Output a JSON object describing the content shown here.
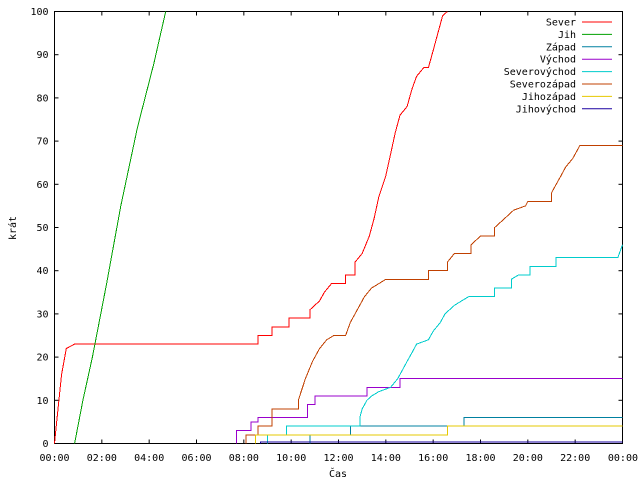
{
  "chart_data": {
    "type": "line",
    "title": "",
    "xlabel": "Čas",
    "ylabel": "krát",
    "xlim": [
      0,
      24
    ],
    "ylim": [
      0,
      100
    ],
    "x_ticks": [
      "00:00",
      "02:00",
      "04:00",
      "06:00",
      "08:00",
      "10:00",
      "12:00",
      "14:00",
      "16:00",
      "18:00",
      "20:00",
      "22:00",
      "00:00"
    ],
    "y_ticks": [
      "0",
      "10",
      "20",
      "30",
      "40",
      "50",
      "60",
      "70",
      "80",
      "90",
      "100"
    ],
    "grid": false,
    "legend_position": "top-right",
    "series": [
      {
        "name": "Sever",
        "color": "#ff0000",
        "points": [
          [
            0,
            0
          ],
          [
            0.15,
            8
          ],
          [
            0.3,
            16
          ],
          [
            0.5,
            22
          ],
          [
            0.85,
            23
          ],
          [
            8.6,
            23
          ],
          [
            8.6,
            25
          ],
          [
            9.2,
            25
          ],
          [
            9.2,
            27
          ],
          [
            9.9,
            27
          ],
          [
            9.9,
            29
          ],
          [
            10.8,
            29
          ],
          [
            10.8,
            31
          ],
          [
            11.2,
            33
          ],
          [
            11.4,
            35
          ],
          [
            11.7,
            37
          ],
          [
            12.3,
            37
          ],
          [
            12.3,
            39
          ],
          [
            12.7,
            39
          ],
          [
            12.7,
            42
          ],
          [
            13.0,
            44
          ],
          [
            13.3,
            48
          ],
          [
            13.5,
            52
          ],
          [
            13.7,
            57
          ],
          [
            14.0,
            62
          ],
          [
            14.2,
            67
          ],
          [
            14.4,
            72
          ],
          [
            14.6,
            76
          ],
          [
            14.9,
            78
          ],
          [
            15.1,
            82
          ],
          [
            15.3,
            85
          ],
          [
            15.6,
            87
          ],
          [
            15.8,
            87
          ],
          [
            16.0,
            91
          ],
          [
            16.2,
            95
          ],
          [
            16.4,
            99
          ],
          [
            16.6,
            100
          ]
        ]
      },
      {
        "name": "Jih",
        "color": "#00a000",
        "points": [
          [
            0.85,
            0
          ],
          [
            1.2,
            10
          ],
          [
            1.6,
            20
          ],
          [
            2.2,
            37
          ],
          [
            2.8,
            55
          ],
          [
            3.5,
            73
          ],
          [
            4.2,
            88
          ],
          [
            4.7,
            100
          ]
        ]
      },
      {
        "name": "Západ",
        "color": "#0080a0",
        "points": [
          [
            10.8,
            0
          ],
          [
            10.8,
            2
          ],
          [
            12.5,
            2
          ],
          [
            12.5,
            4
          ],
          [
            17.3,
            4
          ],
          [
            17.3,
            6
          ],
          [
            24.0,
            6
          ]
        ]
      },
      {
        "name": "Východ",
        "color": "#9900cc",
        "points": [
          [
            7.7,
            0
          ],
          [
            7.7,
            3
          ],
          [
            8.3,
            3
          ],
          [
            8.3,
            5
          ],
          [
            8.6,
            5
          ],
          [
            8.6,
            6
          ],
          [
            10.7,
            6
          ],
          [
            10.7,
            9
          ],
          [
            11.0,
            9
          ],
          [
            11.0,
            11
          ],
          [
            13.2,
            11
          ],
          [
            13.2,
            13
          ],
          [
            14.6,
            13
          ],
          [
            14.6,
            15
          ],
          [
            24.0,
            15
          ]
        ]
      },
      {
        "name": "Severovýchod",
        "color": "#00cccc",
        "points": [
          [
            9.0,
            0
          ],
          [
            9.0,
            2
          ],
          [
            9.8,
            2
          ],
          [
            9.8,
            4
          ],
          [
            12.9,
            4
          ],
          [
            12.9,
            6
          ],
          [
            13.0,
            8
          ],
          [
            13.2,
            10
          ],
          [
            13.4,
            11
          ],
          [
            13.7,
            12
          ],
          [
            14.2,
            13
          ],
          [
            14.5,
            15
          ],
          [
            14.7,
            17
          ],
          [
            14.9,
            19
          ],
          [
            15.1,
            21
          ],
          [
            15.3,
            23
          ],
          [
            15.8,
            24
          ],
          [
            16.0,
            26
          ],
          [
            16.3,
            28
          ],
          [
            16.5,
            30
          ],
          [
            16.7,
            31
          ],
          [
            16.9,
            32
          ],
          [
            17.2,
            33
          ],
          [
            17.5,
            34
          ],
          [
            18.6,
            34
          ],
          [
            18.6,
            36
          ],
          [
            19.3,
            36
          ],
          [
            19.3,
            38
          ],
          [
            19.6,
            39
          ],
          [
            20.1,
            39
          ],
          [
            20.1,
            41
          ],
          [
            21.2,
            41
          ],
          [
            21.2,
            43
          ],
          [
            23.8,
            43
          ],
          [
            24.0,
            46
          ]
        ]
      },
      {
        "name": "Severozápad",
        "color": "#c04000",
        "points": [
          [
            8.1,
            0
          ],
          [
            8.1,
            2
          ],
          [
            8.6,
            2
          ],
          [
            8.6,
            4
          ],
          [
            9.2,
            4
          ],
          [
            9.2,
            8
          ],
          [
            10.3,
            8
          ],
          [
            10.3,
            10
          ],
          [
            10.6,
            15
          ],
          [
            10.9,
            19
          ],
          [
            11.2,
            22
          ],
          [
            11.5,
            24
          ],
          [
            11.8,
            25
          ],
          [
            12.3,
            25
          ],
          [
            12.5,
            28
          ],
          [
            12.8,
            31
          ],
          [
            13.1,
            34
          ],
          [
            13.4,
            36
          ],
          [
            13.7,
            37
          ],
          [
            14.0,
            38
          ],
          [
            15.8,
            38
          ],
          [
            15.8,
            40
          ],
          [
            16.6,
            40
          ],
          [
            16.6,
            42
          ],
          [
            16.9,
            44
          ],
          [
            17.6,
            44
          ],
          [
            17.6,
            46
          ],
          [
            18.0,
            48
          ],
          [
            18.6,
            48
          ],
          [
            18.6,
            50
          ],
          [
            19.0,
            52
          ],
          [
            19.4,
            54
          ],
          [
            19.9,
            55
          ],
          [
            20.0,
            56
          ],
          [
            21.0,
            56
          ],
          [
            21.0,
            58
          ],
          [
            21.2,
            60
          ],
          [
            21.4,
            62
          ],
          [
            21.6,
            64
          ],
          [
            21.9,
            66
          ],
          [
            22.2,
            69
          ],
          [
            24.0,
            69
          ]
        ]
      },
      {
        "name": "Jihozápad",
        "color": "#e6c800",
        "points": [
          [
            8.5,
            0
          ],
          [
            8.5,
            2
          ],
          [
            16.6,
            2
          ],
          [
            16.6,
            4
          ],
          [
            24.0,
            4
          ]
        ]
      },
      {
        "name": "Jihovýchod",
        "color": "#1a00a0",
        "points": [
          [
            8.7,
            0
          ],
          [
            8.7,
            0.3
          ],
          [
            24.0,
            0.3
          ]
        ]
      }
    ]
  }
}
